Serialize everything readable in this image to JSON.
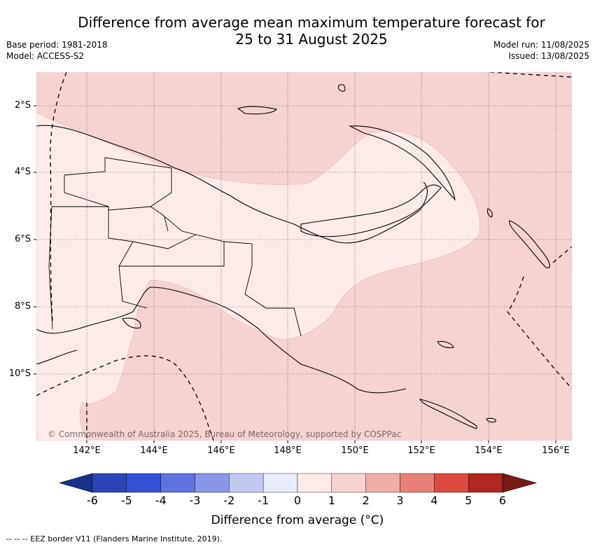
{
  "title_line1": "Difference from average mean maximum temperature forecast for",
  "title_line2": "25 to 31 August 2025",
  "meta_left": {
    "base_period": "Base period: 1981-2018",
    "model": "Model: ACCESS-S2"
  },
  "meta_right": {
    "model_run": "Model run: 11/08/2025",
    "issued": "Issued: 13/08/2025"
  },
  "map": {
    "lat_ticks": [
      "2°S",
      "4°S",
      "6°S",
      "8°S",
      "10°S"
    ],
    "lon_ticks": [
      "142°E",
      "144°E",
      "146°E",
      "148°E",
      "150°E",
      "152°E",
      "154°E",
      "156°E"
    ],
    "copyright": "© Commonwealth of Australia 2025, Bureau of Meteorology, supported by COSPPac"
  },
  "colorbar": {
    "labels": [
      "-6",
      "-5",
      "-4",
      "-3",
      "-2",
      "-1",
      "0",
      "1",
      "2",
      "3",
      "4",
      "5",
      "6"
    ],
    "colors": [
      "#2c43b8",
      "#3450d8",
      "#5f72e0",
      "#8a97e8",
      "#c2c8f2",
      "#e8ebf9",
      "#fcebe9",
      "#f5d3d0",
      "#f0aca7",
      "#e8807a",
      "#dc4b3f",
      "#b0281f"
    ],
    "under_color": "#1a2f8a",
    "over_color": "#7a1a14",
    "title": "Difference from average (°C)"
  },
  "footnote": "--  --  -- EEZ border V11 (Flanders Marine Institute, 2019)."
}
